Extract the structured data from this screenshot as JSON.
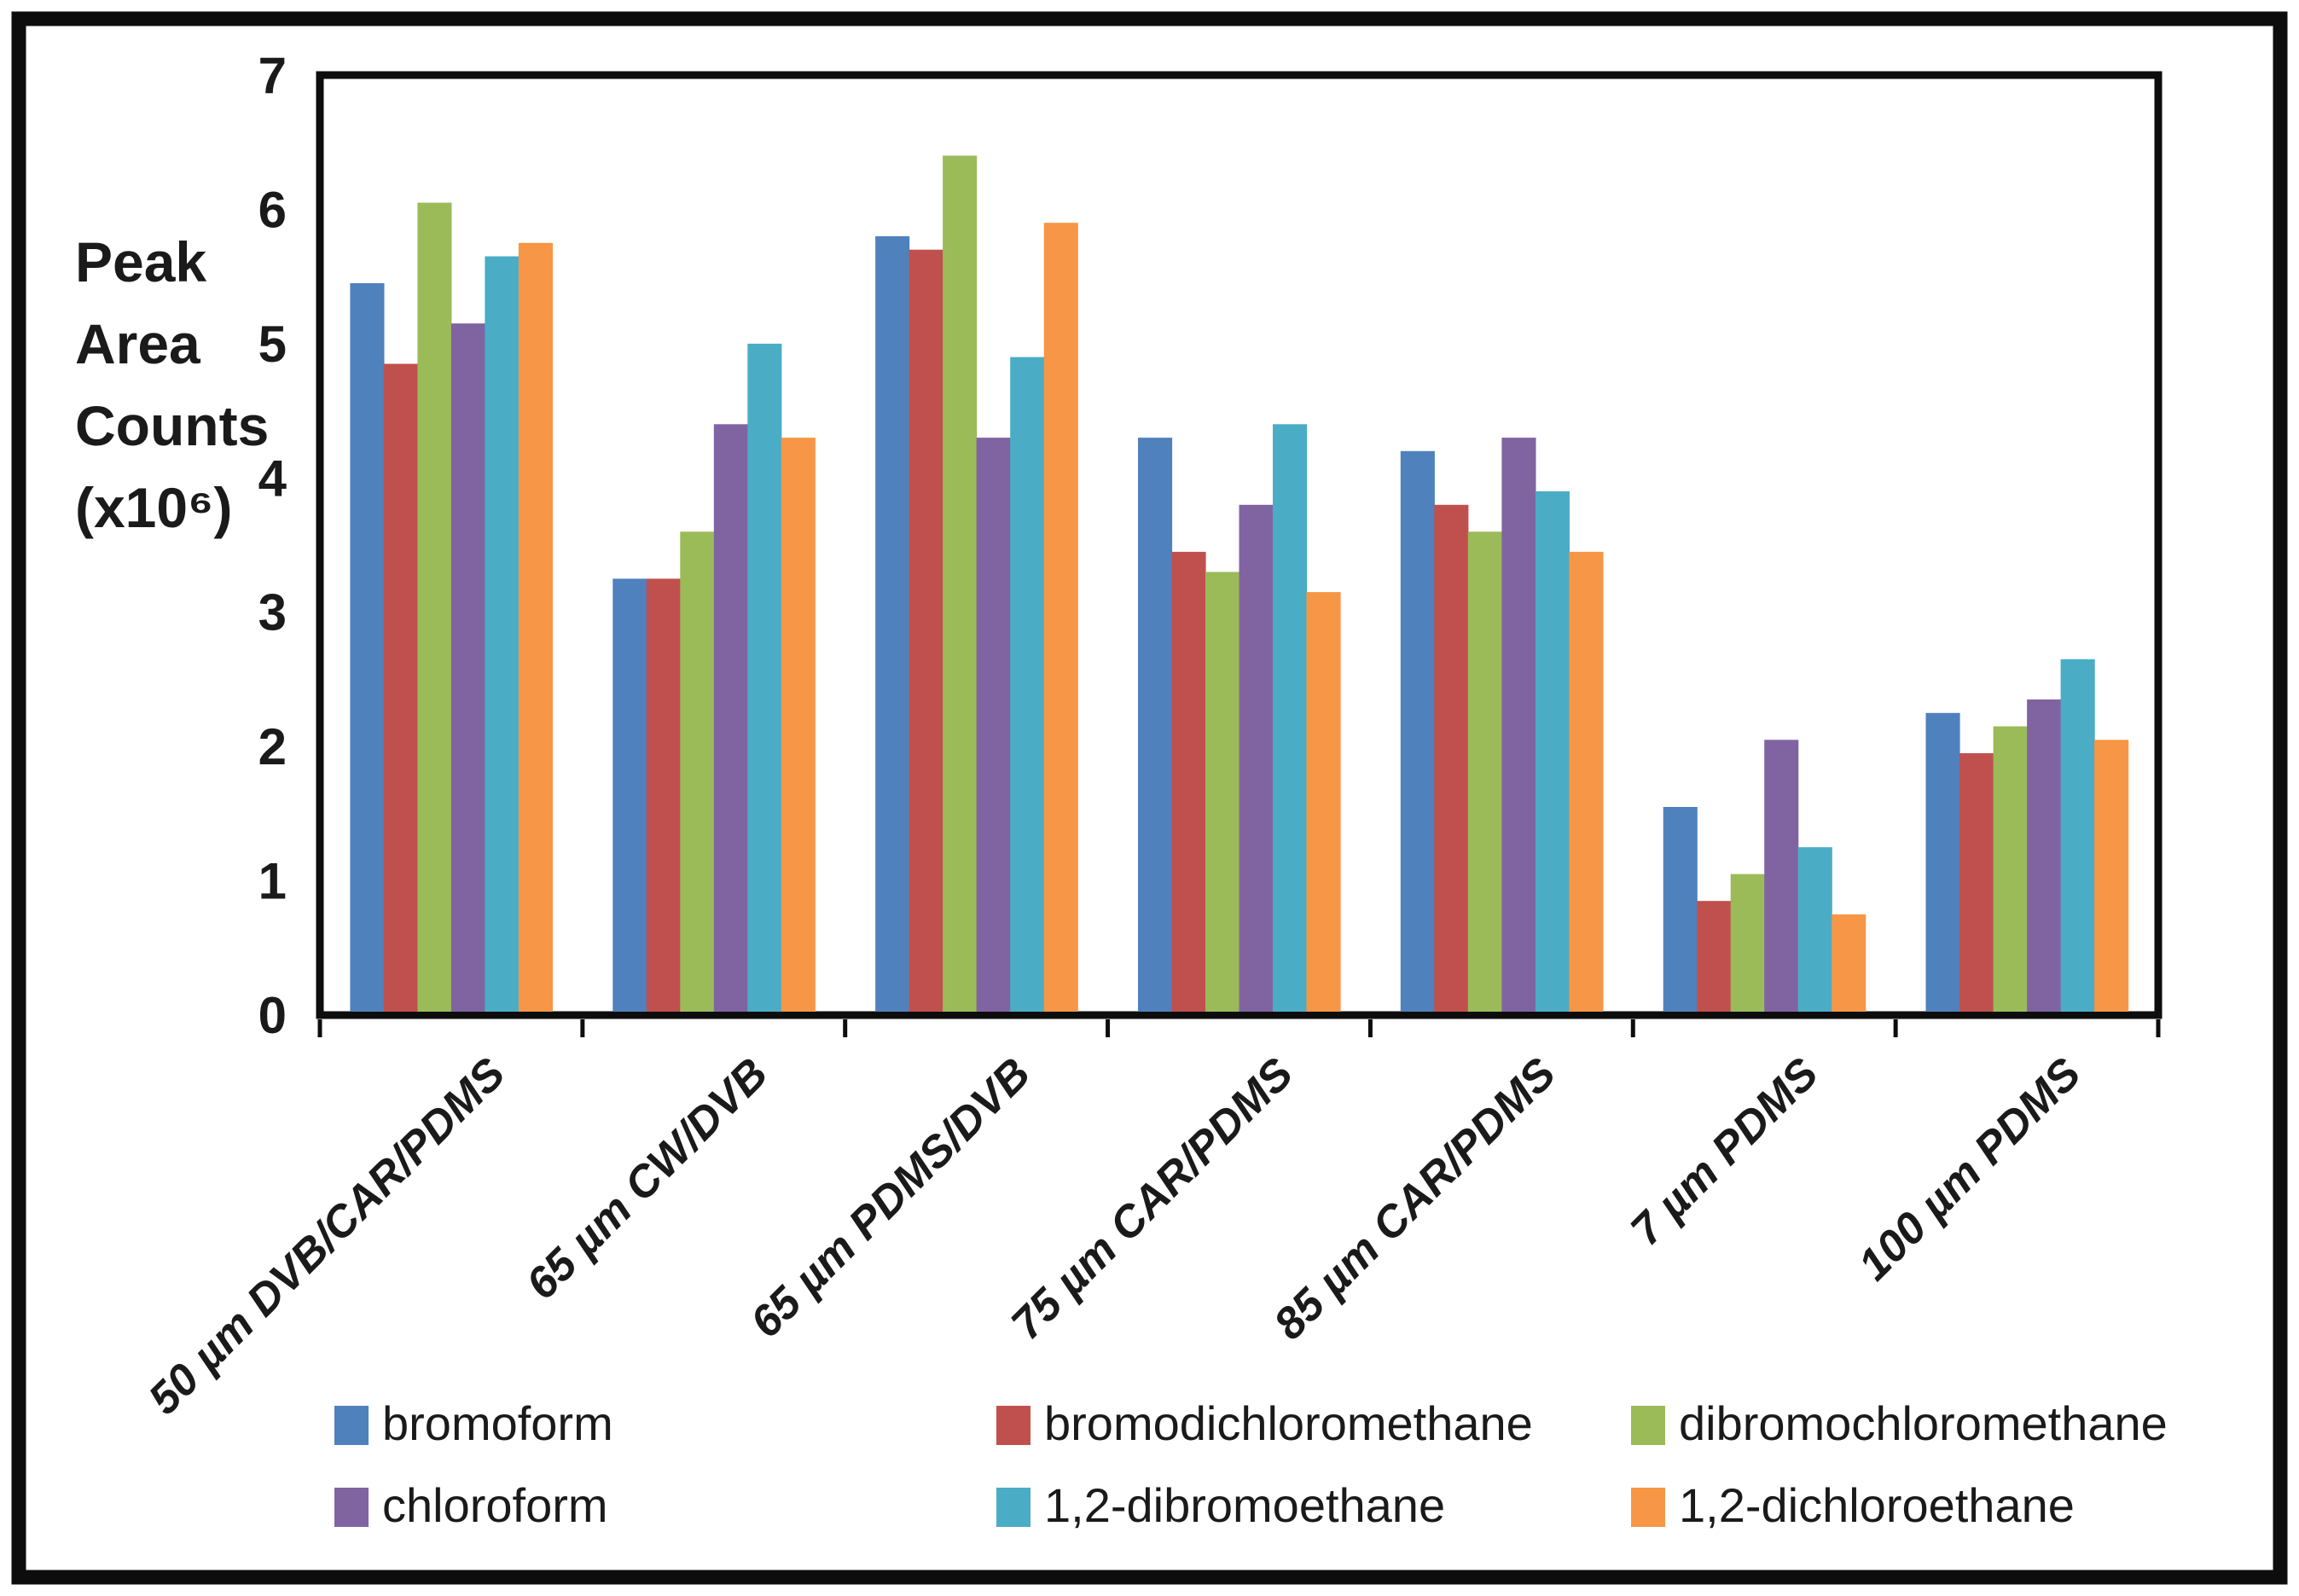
{
  "chart_data": {
    "type": "bar",
    "title": "",
    "ylabel": "Peak Area Counts (x10⁶)",
    "ylabel_lines": [
      "Peak",
      "Area",
      "Counts",
      "(x10⁶)"
    ],
    "ylim": [
      0,
      7
    ],
    "yticks": [
      0,
      1,
      2,
      3,
      4,
      5,
      6,
      7
    ],
    "grid": false,
    "legend_position": "bottom",
    "legend_columns": 3,
    "axis_color": "#0d0d0d",
    "text_color": "#1a1a1a",
    "frame_color": "#0d0d0d",
    "background_color": "#ffffff",
    "categories": [
      "50 µm DVB/CAR/PDMS",
      "65 µm CW/DVB",
      "65 µm PDMS/DVB",
      "75 µm CAR/PDMS",
      "85 µm CAR/PDMS",
      "7 µm PDMS",
      "100 µm PDMS"
    ],
    "series": [
      {
        "name": "bromoform",
        "color": "#4F81BD",
        "values": [
          5.45,
          3.25,
          5.8,
          4.3,
          4.2,
          1.55,
          2.25
        ]
      },
      {
        "name": "bromodichloromethane",
        "color": "#C0504D",
        "values": [
          4.85,
          3.25,
          5.7,
          3.45,
          3.8,
          0.85,
          1.95
        ]
      },
      {
        "name": "dibromochloromethane",
        "color": "#9BBB59",
        "values": [
          6.05,
          3.6,
          6.4,
          3.3,
          3.6,
          1.05,
          2.15
        ]
      },
      {
        "name": "chloroform",
        "color": "#8064A2",
        "values": [
          5.15,
          4.4,
          4.3,
          3.8,
          4.3,
          2.05,
          2.35
        ]
      },
      {
        "name": "1,2-dibromoethane",
        "color": "#4BACC6",
        "values": [
          5.65,
          5.0,
          4.9,
          4.4,
          3.9,
          1.25,
          2.65
        ]
      },
      {
        "name": "1,2-dichloroethane",
        "color": "#F79646",
        "values": [
          5.75,
          4.3,
          5.9,
          3.15,
          3.45,
          0.75,
          2.05
        ]
      }
    ]
  }
}
